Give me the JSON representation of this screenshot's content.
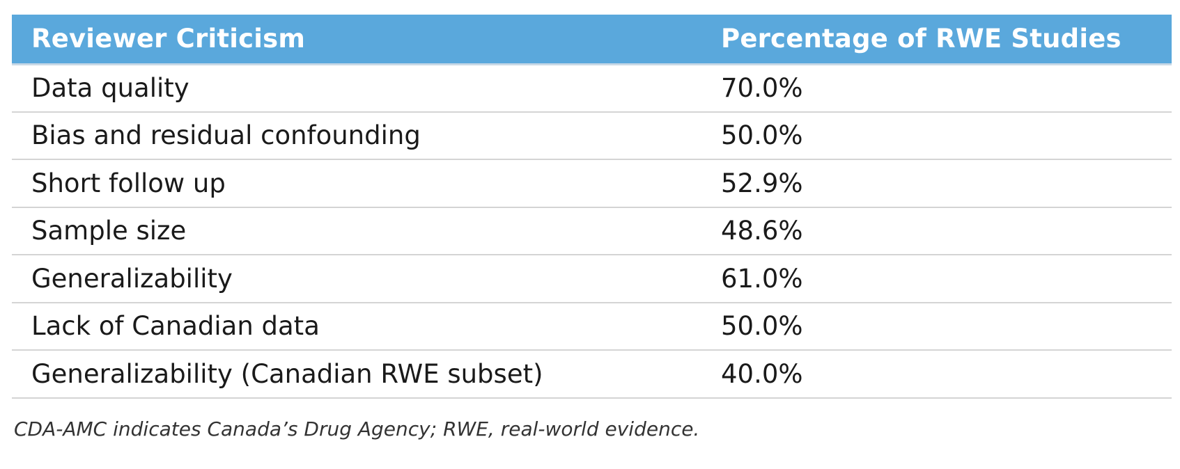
{
  "table": {
    "headers": [
      "Reviewer Criticism",
      "Percentage of RWE Studies"
    ],
    "rows": [
      [
        "Data quality",
        "70.0%"
      ],
      [
        "Bias and residual confounding",
        "50.0%"
      ],
      [
        "Short follow up",
        "52.9%"
      ],
      [
        "Sample size",
        "48.6%"
      ],
      [
        "Generalizability",
        "61.0%"
      ],
      [
        "Lack of Canadian data",
        "50.0%"
      ],
      [
        "Generalizability (Canadian RWE subset)",
        "40.0%"
      ]
    ]
  },
  "footnote": "CDA-AMC indicates Canada’s Drug Agency; RWE, real-world evidence.",
  "colors": {
    "header_bg": "#5aa8dc",
    "header_text": "#ffffff",
    "row_divider": "#d4d4d4"
  }
}
